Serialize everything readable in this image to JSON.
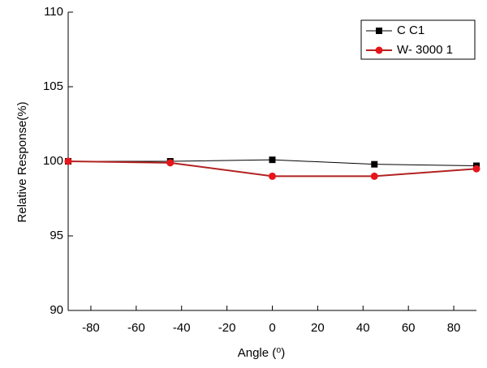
{
  "chart_data": {
    "type": "line",
    "x_label": "Angle (⁰)",
    "y_label": "Relative Response(%)",
    "x": [
      -90,
      -45,
      0,
      45,
      90
    ],
    "series": [
      {
        "name": "C C1",
        "color": "#000000",
        "marker": "square",
        "values": [
          100,
          100,
          100.1,
          99.8,
          99.7
        ]
      },
      {
        "name": "W- 3000 1",
        "color": "#b22222",
        "marker": "circle",
        "values": [
          100,
          99.9,
          99.0,
          99.0,
          99.5
        ]
      }
    ],
    "xlim": [
      -90,
      90
    ],
    "xticks": [
      -80,
      -60,
      -40,
      -20,
      0,
      20,
      40,
      60,
      80
    ],
    "ylim": [
      90,
      110
    ],
    "yticks": [
      90,
      95,
      100,
      105,
      110
    ],
    "legend": "upper right"
  }
}
